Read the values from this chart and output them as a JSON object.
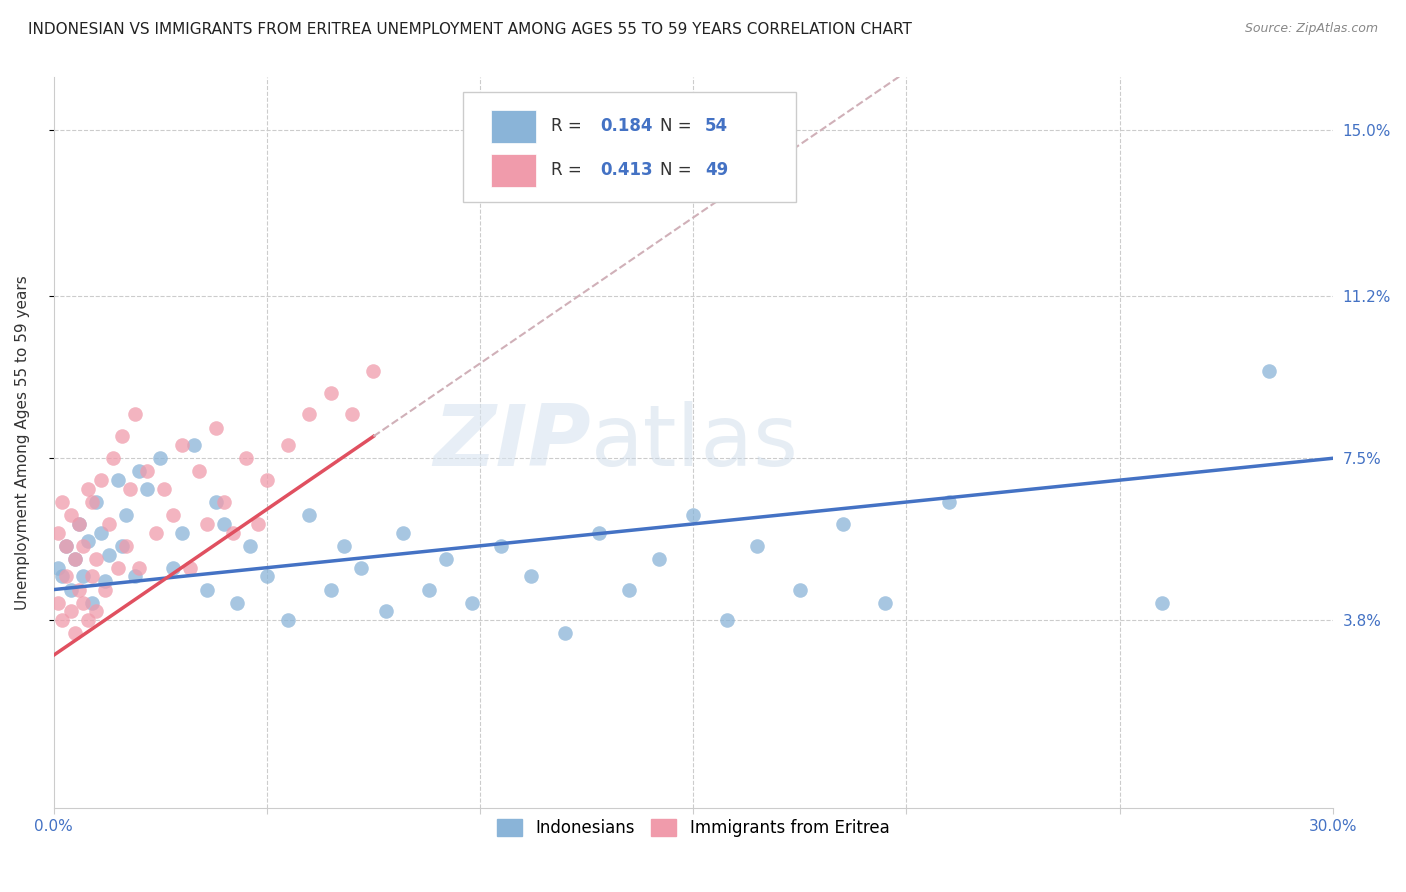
{
  "title": "INDONESIAN VS IMMIGRANTS FROM ERITREA UNEMPLOYMENT AMONG AGES 55 TO 59 YEARS CORRELATION CHART",
  "source": "Source: ZipAtlas.com",
  "ylabel": "Unemployment Among Ages 55 to 59 years",
  "xlim": [
    0.0,
    0.3
  ],
  "ylim": [
    -0.005,
    0.162
  ],
  "ytick_positions": [
    0.038,
    0.075,
    0.112,
    0.15
  ],
  "ytick_labels": [
    "3.8%",
    "7.5%",
    "11.2%",
    "15.0%"
  ],
  "watermark_zip": "ZIP",
  "watermark_atlas": "atlas",
  "r_indonesian": 0.184,
  "n_indonesian": 54,
  "r_eritrea": 0.413,
  "n_eritrea": 49,
  "indonesian_color": "#8ab4d8",
  "eritrea_color": "#f09bab",
  "trendline_indonesian_color": "#4472c4",
  "trendline_eritrea_color": "#e05060",
  "dashed_line_color": "#d0b0b8",
  "background_color": "#ffffff",
  "grid_color": "#cccccc",
  "title_fontsize": 11,
  "axis_label_fontsize": 11,
  "tick_fontsize": 11,
  "legend_fontsize": 12,
  "blue_text_color": "#4472c4",
  "dark_text_color": "#222222",
  "source_color": "#888888"
}
